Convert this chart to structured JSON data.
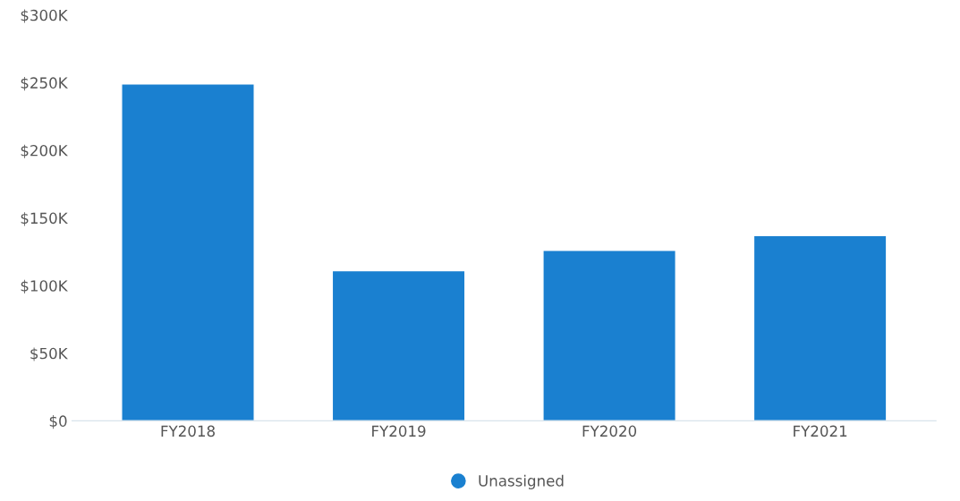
{
  "chart_data": {
    "type": "bar",
    "categories": [
      "FY2018",
      "FY2019",
      "FY2020",
      "FY2021"
    ],
    "series": [
      {
        "name": "Unassigned",
        "color": "#1a80d0",
        "values": [
          249000,
          111000,
          126000,
          137000
        ]
      }
    ],
    "ylim": [
      0,
      300000
    ],
    "yticks": [
      {
        "value": 0,
        "label": "$0"
      },
      {
        "value": 50000,
        "label": "$50K"
      },
      {
        "value": 100000,
        "label": "$100K"
      },
      {
        "value": 150000,
        "label": "$150K"
      },
      {
        "value": 200000,
        "label": "$200K"
      },
      {
        "value": 250000,
        "label": "$250K"
      },
      {
        "value": 300000,
        "label": "$300K"
      }
    ],
    "grid": false,
    "legend": "bottom"
  }
}
